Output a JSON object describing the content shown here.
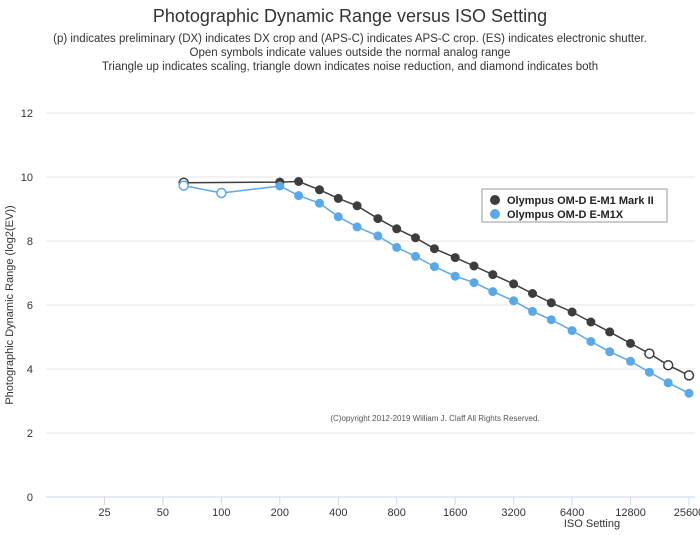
{
  "title": "Photographic Dynamic Range versus ISO Setting",
  "subtitle_lines": [
    "(p) indicates preliminary (DX) indicates DX crop and (APS-C) indicates APS-C crop. (ES) indicates electronic shutter.",
    "Open symbols indicate values outside the normal analog range",
    "Triangle up indicates scaling, triangle down indicates noise reduction, and diamond indicates both"
  ],
  "copyright": "(C)opyright 2012-2019 William J. Claff All Rights Reserved.",
  "colors": {
    "series1": "#3d3d3d",
    "series2": "#5aa8e6",
    "grid": "#e6e6e6",
    "axis": "#ccd6eb"
  },
  "chart_data": {
    "type": "line",
    "xlabel": "ISO Setting",
    "ylabel": "Photographic Dynamic Range (log2(EV))",
    "x_scale": "log2",
    "x_ticks": [
      25,
      50,
      100,
      200,
      400,
      800,
      1600,
      3200,
      6400,
      12800,
      25600
    ],
    "x_tick_labels": [
      "25",
      "50",
      "100",
      "200",
      "400",
      "800",
      "1600",
      "3200",
      "6400",
      "12800",
      "25600"
    ],
    "ylim": [
      0,
      12
    ],
    "y_ticks": [
      0,
      2,
      4,
      6,
      8,
      10,
      12
    ],
    "grid": true,
    "legend_position": "right",
    "series": [
      {
        "name": "Olympus OM-D E-M1 Mark II",
        "points": [
          {
            "x": 64,
            "y": 9.82,
            "open": true
          },
          {
            "x": 200,
            "y": 9.84,
            "open": false
          },
          {
            "x": 250,
            "y": 9.86,
            "open": false
          },
          {
            "x": 320,
            "y": 9.6,
            "open": false
          },
          {
            "x": 400,
            "y": 9.33,
            "open": false
          },
          {
            "x": 500,
            "y": 9.1,
            "open": false
          },
          {
            "x": 640,
            "y": 8.7,
            "open": false
          },
          {
            "x": 800,
            "y": 8.38,
            "open": false
          },
          {
            "x": 1000,
            "y": 8.1,
            "open": false
          },
          {
            "x": 1250,
            "y": 7.76,
            "open": false
          },
          {
            "x": 1600,
            "y": 7.48,
            "open": false
          },
          {
            "x": 2000,
            "y": 7.22,
            "open": false
          },
          {
            "x": 2500,
            "y": 6.95,
            "open": false
          },
          {
            "x": 3200,
            "y": 6.66,
            "open": false
          },
          {
            "x": 4000,
            "y": 6.36,
            "open": false
          },
          {
            "x": 5000,
            "y": 6.07,
            "open": false
          },
          {
            "x": 6400,
            "y": 5.78,
            "open": false
          },
          {
            "x": 8000,
            "y": 5.47,
            "open": false
          },
          {
            "x": 10000,
            "y": 5.16,
            "open": false
          },
          {
            "x": 12800,
            "y": 4.8,
            "open": false
          },
          {
            "x": 16000,
            "y": 4.48,
            "open": true
          },
          {
            "x": 20000,
            "y": 4.12,
            "open": true
          },
          {
            "x": 25600,
            "y": 3.8,
            "open": true
          }
        ]
      },
      {
        "name": "Olympus OM-D E-M1X",
        "points": [
          {
            "x": 64,
            "y": 9.73,
            "open": true
          },
          {
            "x": 100,
            "y": 9.5,
            "open": true
          },
          {
            "x": 200,
            "y": 9.72,
            "open": false
          },
          {
            "x": 250,
            "y": 9.42,
            "open": false
          },
          {
            "x": 320,
            "y": 9.18,
            "open": false
          },
          {
            "x": 400,
            "y": 8.76,
            "open": false
          },
          {
            "x": 500,
            "y": 8.44,
            "open": false
          },
          {
            "x": 640,
            "y": 8.16,
            "open": false
          },
          {
            "x": 800,
            "y": 7.8,
            "open": false
          },
          {
            "x": 1000,
            "y": 7.52,
            "open": false
          },
          {
            "x": 1250,
            "y": 7.2,
            "open": false
          },
          {
            "x": 1600,
            "y": 6.9,
            "open": false
          },
          {
            "x": 2000,
            "y": 6.7,
            "open": false
          },
          {
            "x": 2500,
            "y": 6.42,
            "open": false
          },
          {
            "x": 3200,
            "y": 6.13,
            "open": false
          },
          {
            "x": 4000,
            "y": 5.8,
            "open": false
          },
          {
            "x": 5000,
            "y": 5.54,
            "open": false
          },
          {
            "x": 6400,
            "y": 5.2,
            "open": false
          },
          {
            "x": 8000,
            "y": 4.86,
            "open": false
          },
          {
            "x": 10000,
            "y": 4.54,
            "open": false
          },
          {
            "x": 12800,
            "y": 4.24,
            "open": false
          },
          {
            "x": 16000,
            "y": 3.9,
            "open": false
          },
          {
            "x": 20000,
            "y": 3.57,
            "open": false
          },
          {
            "x": 25600,
            "y": 3.24,
            "open": false
          }
        ]
      }
    ]
  }
}
